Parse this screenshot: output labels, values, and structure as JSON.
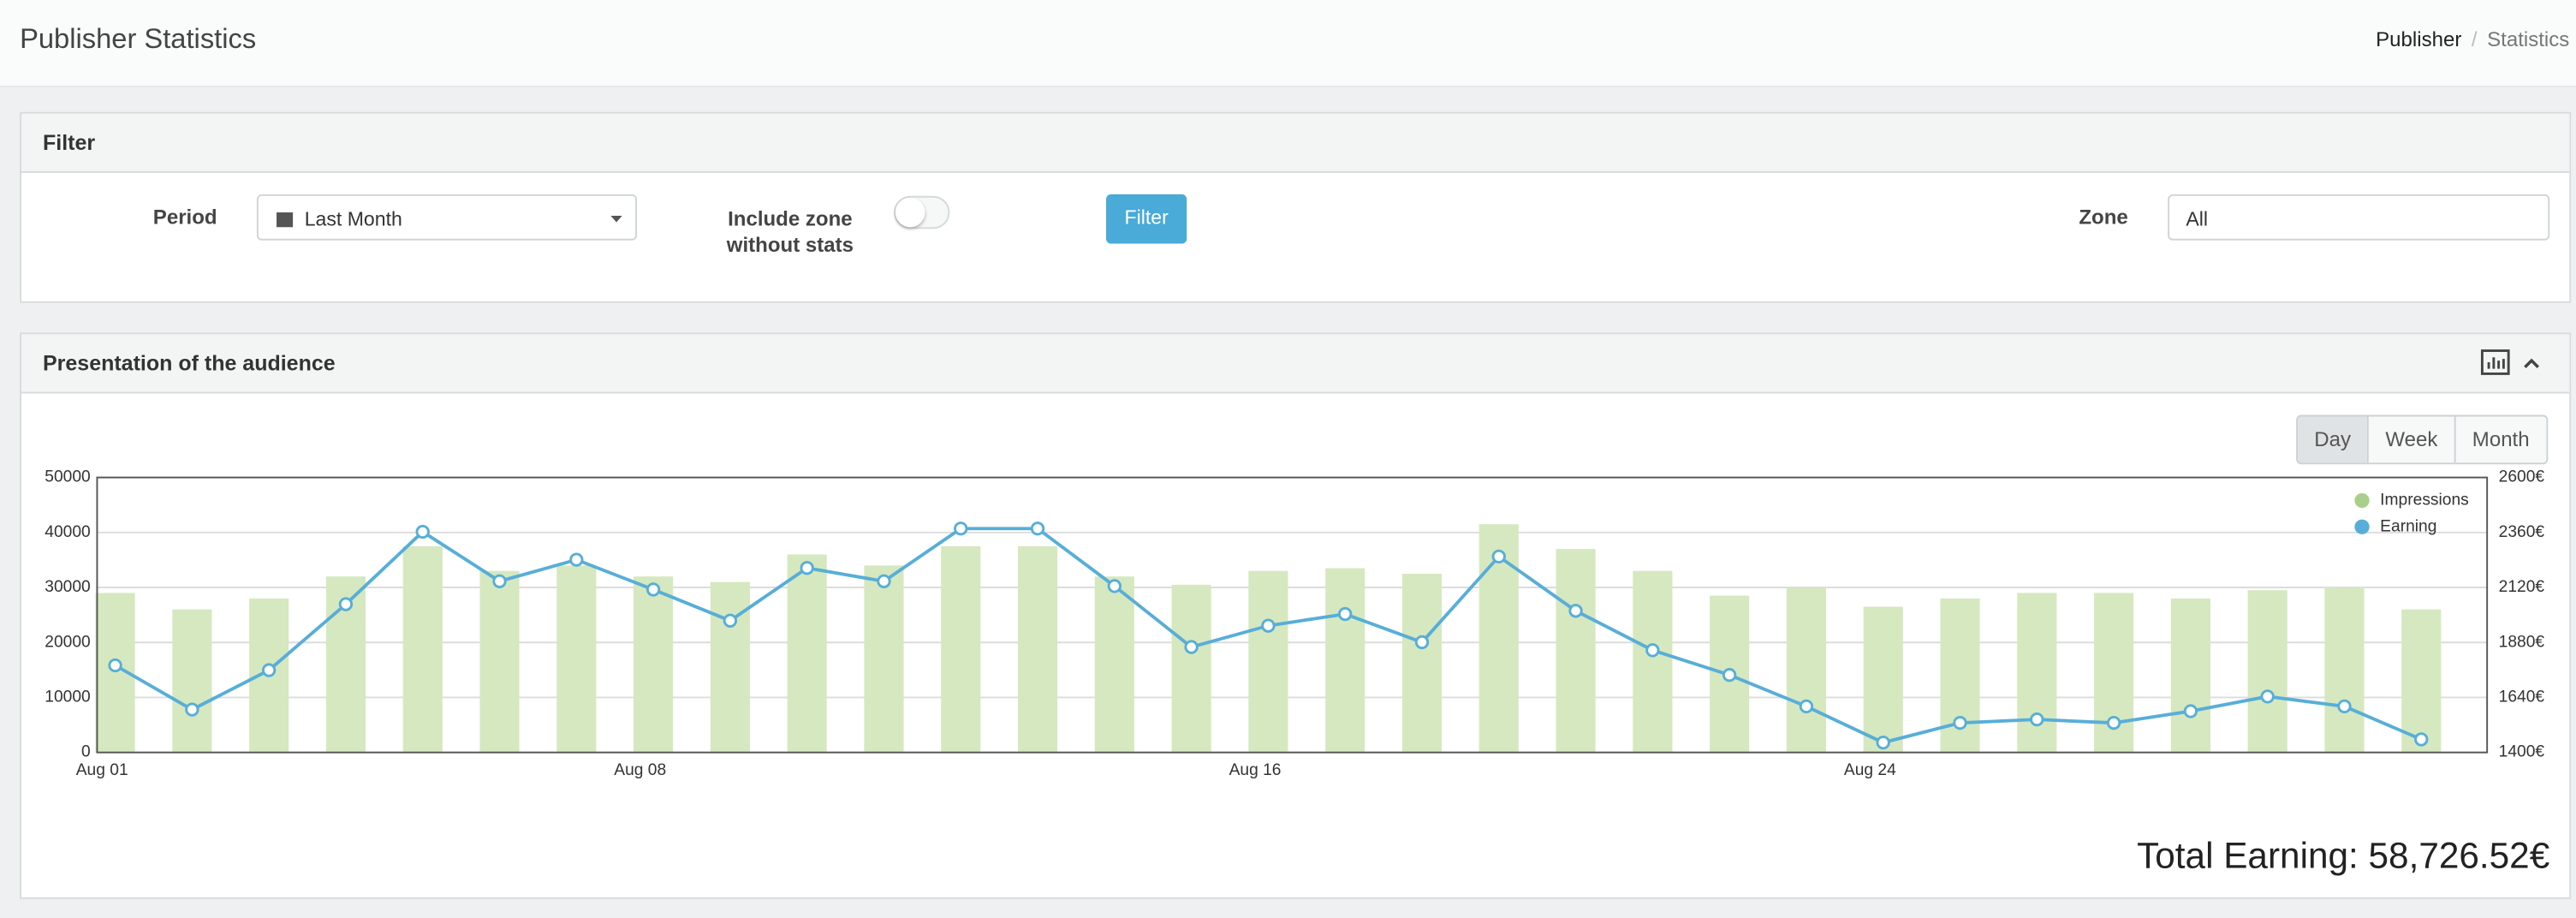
{
  "header": {
    "title": "Publisher Statistics",
    "breadcrumb": [
      "Publisher",
      "Statistics"
    ]
  },
  "filter": {
    "title": "Filter",
    "period_label": "Period",
    "period_value": "Last Month",
    "include_label": "Include zone without stats",
    "button": "Filter",
    "zone_label": "Zone",
    "zone_value": "All"
  },
  "panel": {
    "title": "Presentation of the audience",
    "range_buttons": [
      "Day",
      "Week",
      "Month"
    ],
    "total": "Total Earning: 58,726.52€"
  },
  "chart_data": {
    "type": "bar-line",
    "categories": [
      "Aug 01",
      null,
      null,
      null,
      null,
      null,
      null,
      "Aug 08",
      null,
      null,
      null,
      null,
      null,
      null,
      null,
      "Aug 16",
      null,
      null,
      null,
      null,
      null,
      null,
      null,
      "Aug 24",
      null,
      null,
      null,
      null,
      null,
      null,
      null
    ],
    "series": [
      {
        "name": "Impressions",
        "type": "bar",
        "color": "#d6e8bf",
        "legend_color": "#a9d08a",
        "values": [
          29000,
          26000,
          28000,
          32000,
          37500,
          33000,
          34000,
          32000,
          31000,
          36000,
          34000,
          37500,
          37500,
          32000,
          30500,
          33000,
          33500,
          32500,
          41500,
          37000,
          33000,
          28500,
          30000,
          26500,
          28000,
          29000,
          29000,
          28000,
          29500,
          30000,
          26000
        ]
      },
      {
        "name": "Earning",
        "type": "line",
        "axis": "y2",
        "color": "#57aed8",
        "values": [
          1780,
          1587,
          1759,
          2047,
          2363,
          2147,
          2241,
          2111,
          1975,
          2205,
          2147,
          2377,
          2377,
          2126,
          1860,
          1953,
          2004,
          1881,
          2255,
          2018,
          1846,
          1738,
          1601,
          1443,
          1529,
          1544,
          1529,
          1580,
          1644,
          1601,
          1457
        ]
      }
    ],
    "ylim": [
      0,
      50000
    ],
    "yticks": [
      0,
      10000,
      20000,
      30000,
      40000,
      50000
    ],
    "y2lim": [
      1400,
      2600
    ],
    "y2ticks": [
      {
        "value": 1400,
        "label": "1400€"
      },
      {
        "value": 1640,
        "label": "1640€"
      },
      {
        "value": 1880,
        "label": "1880€"
      },
      {
        "value": 2120,
        "label": "2120€"
      },
      {
        "value": 2360,
        "label": "2360€"
      },
      {
        "value": 2600,
        "label": "2600€"
      }
    ],
    "grid": true,
    "legend": "top-right"
  }
}
